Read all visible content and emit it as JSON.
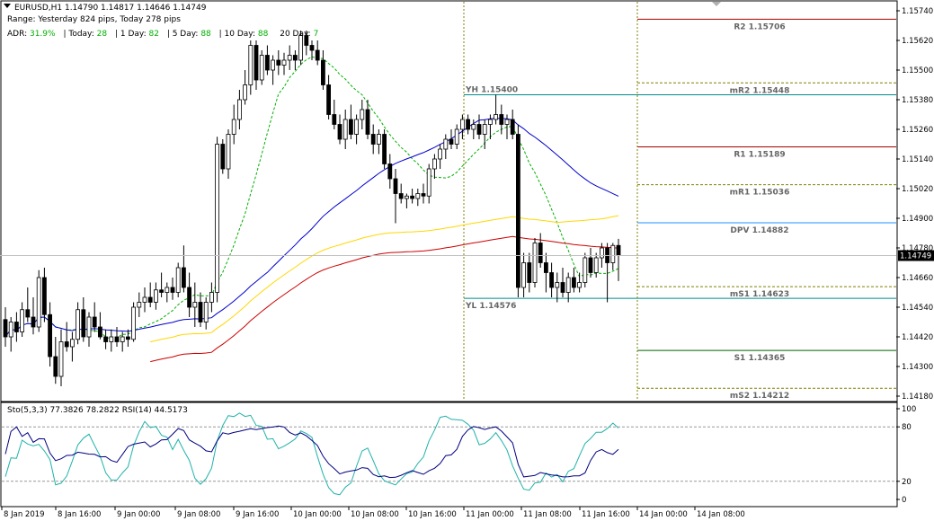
{
  "header": {
    "symbol_line": "EURUSD,H1  1.14790 1.14817 1.14646 1.14749",
    "range_line": "Range: Yesterday 824 pips, Today 278 pips",
    "adr_label": "ADR:",
    "adr_value": "31.9%",
    "today_label": "| Today:",
    "today_value": "28",
    "day1_label": "| 1 Day:",
    "day1_value": "82",
    "day5_label": "| 5 Day:",
    "day5_value": "88",
    "day10_label": "| 10 Day:",
    "day10_value": "88",
    "day20_label": "20 Day:",
    "day20_value": "7"
  },
  "sub_header": "Sto(5,3,3) 77.3826 78.2822  RSI(14) 44.5173",
  "colors": {
    "bull": "#ffffff",
    "bear": "#000000",
    "ma_blue": "#0000cd",
    "ma_yellow": "#ffd700",
    "ma_red": "#cc0000",
    "ma_green_dashed": "#00b000",
    "level_red": "#aa0000",
    "level_green": "#006400",
    "level_blue": "#1e90ff",
    "level_teal": "#008b8b",
    "level_dotted": "#808000",
    "sto_main": "#000080",
    "rsi": "#20b2aa"
  },
  "chart_data": [
    {
      "type": "candlestick",
      "symbol": "EURUSD",
      "timeframe": "H1",
      "ylim": [
        1.1415,
        1.158
      ],
      "y_ticks": [
        "1.15740",
        "1.15620",
        "1.15500",
        "1.15380",
        "1.15260",
        "1.15140",
        "1.15020",
        "1.14900",
        "1.14780",
        "1.14660",
        "1.14540",
        "1.14420",
        "1.14300",
        "1.14180"
      ],
      "x_ticks": [
        "8 Jan 2019",
        "8 Jan 16:00",
        "9 Jan 00:00",
        "9 Jan 08:00",
        "9 Jan 16:00",
        "10 Jan 00:00",
        "10 Jan 08:00",
        "10 Jan 16:00",
        "11 Jan 00:00",
        "11 Jan 08:00",
        "11 Jan 16:00",
        "14 Jan 00:00",
        "14 Jan 08:00"
      ],
      "current_price": "1.14749",
      "current_price_value": 1.14749,
      "levels": [
        {
          "label": "R2 1.15706",
          "value": 1.15706,
          "color": "#aa0000",
          "style": "solid",
          "from_session": "14 Jan"
        },
        {
          "label": "mR2 1.15448",
          "value": 1.15448,
          "color": "#808000",
          "style": "dotted",
          "from_session": "14 Jan"
        },
        {
          "label": "R1 1.15189",
          "value": 1.15189,
          "color": "#aa0000",
          "style": "solid",
          "from_session": "14 Jan"
        },
        {
          "label": "mR1 1.15036",
          "value": 1.15036,
          "color": "#808000",
          "style": "dotted",
          "from_session": "14 Jan"
        },
        {
          "label": "DPV 1.14882",
          "value": 1.14882,
          "color": "#1e90ff",
          "style": "solid",
          "from_session": "14 Jan"
        },
        {
          "label": "mS1 1.14623",
          "value": 1.14623,
          "color": "#808000",
          "style": "dotted",
          "from_session": "14 Jan"
        },
        {
          "label": "S1 1.14365",
          "value": 1.14365,
          "color": "#006400",
          "style": "solid",
          "from_session": "14 Jan"
        },
        {
          "label": "mS2 1.14212",
          "value": 1.14212,
          "color": "#808000",
          "style": "dotted",
          "from_session": "14 Jan"
        },
        {
          "label": "YH 1.15400",
          "value": 1.154,
          "color": "#008b8b",
          "style": "solid",
          "from_session": "11 Jan"
        },
        {
          "label": "YL 1.14576",
          "value": 1.14576,
          "color": "#008b8b",
          "style": "solid",
          "from_session": "11 Jan"
        }
      ],
      "candles": [
        [
          1.1449,
          1.1454,
          1.1438,
          1.1442
        ],
        [
          1.1442,
          1.145,
          1.1436,
          1.1448
        ],
        [
          1.1448,
          1.1452,
          1.144,
          1.1444
        ],
        [
          1.1444,
          1.1456,
          1.1442,
          1.1453
        ],
        [
          1.1453,
          1.1462,
          1.1448,
          1.145
        ],
        [
          1.145,
          1.1458,
          1.1443,
          1.1446
        ],
        [
          1.1446,
          1.1469,
          1.1444,
          1.1466
        ],
        [
          1.1466,
          1.147,
          1.1448,
          1.1451
        ],
        [
          1.1451,
          1.1456,
          1.143,
          1.1434
        ],
        [
          1.1434,
          1.1442,
          1.1423,
          1.1426
        ],
        [
          1.1426,
          1.1445,
          1.1422,
          1.144
        ],
        [
          1.144,
          1.1448,
          1.1436,
          1.1438
        ],
        [
          1.1438,
          1.1444,
          1.1432,
          1.1441
        ],
        [
          1.1441,
          1.1456,
          1.1439,
          1.1453
        ],
        [
          1.1453,
          1.1458,
          1.144,
          1.1442
        ],
        [
          1.1442,
          1.1452,
          1.1438,
          1.145
        ],
        [
          1.145,
          1.1456,
          1.1444,
          1.1446
        ],
        [
          1.1446,
          1.1452,
          1.1441,
          1.1442
        ],
        [
          1.1442,
          1.1445,
          1.1437,
          1.144
        ],
        [
          1.144,
          1.1445,
          1.1436,
          1.1442
        ],
        [
          1.1442,
          1.1446,
          1.1438,
          1.144
        ],
        [
          1.144,
          1.1444,
          1.1436,
          1.1442
        ],
        [
          1.1442,
          1.1445,
          1.1438,
          1.1441
        ],
        [
          1.1441,
          1.1456,
          1.144,
          1.1454
        ],
        [
          1.1454,
          1.146,
          1.145,
          1.1456
        ],
        [
          1.1456,
          1.1462,
          1.1452,
          1.1458
        ],
        [
          1.1458,
          1.1464,
          1.1454,
          1.1456
        ],
        [
          1.1456,
          1.1464,
          1.1453,
          1.1461
        ],
        [
          1.1461,
          1.1468,
          1.1458,
          1.146
        ],
        [
          1.146,
          1.1464,
          1.1456,
          1.1462
        ],
        [
          1.1462,
          1.1466,
          1.1457,
          1.146
        ],
        [
          1.146,
          1.1472,
          1.1458,
          1.147
        ],
        [
          1.147,
          1.1479,
          1.146,
          1.1462
        ],
        [
          1.1462,
          1.1468,
          1.145,
          1.1454
        ],
        [
          1.1454,
          1.1464,
          1.1446,
          1.1456
        ],
        [
          1.1456,
          1.146,
          1.1446,
          1.1448
        ],
        [
          1.1448,
          1.1458,
          1.1445,
          1.1456
        ],
        [
          1.1456,
          1.1464,
          1.1452,
          1.146
        ],
        [
          1.146,
          1.1523,
          1.1456,
          1.152
        ],
        [
          1.152,
          1.1522,
          1.1508,
          1.151
        ],
        [
          1.151,
          1.1526,
          1.1506,
          1.1524
        ],
        [
          1.1524,
          1.1536,
          1.152,
          1.153
        ],
        [
          1.153,
          1.1542,
          1.1526,
          1.1538
        ],
        [
          1.1538,
          1.155,
          1.1536,
          1.1544
        ],
        [
          1.1544,
          1.1562,
          1.154,
          1.156
        ],
        [
          1.156,
          1.1562,
          1.1542,
          1.1546
        ],
        [
          1.1546,
          1.1558,
          1.1544,
          1.1556
        ],
        [
          1.1556,
          1.156,
          1.1548,
          1.155
        ],
        [
          1.155,
          1.1556,
          1.1544,
          1.1554
        ],
        [
          1.1554,
          1.1558,
          1.1548,
          1.1552
        ],
        [
          1.1552,
          1.1557,
          1.1548,
          1.1554
        ],
        [
          1.1554,
          1.156,
          1.155,
          1.1556
        ],
        [
          1.1556,
          1.1558,
          1.155,
          1.1554
        ],
        [
          1.1554,
          1.1566,
          1.1552,
          1.1564
        ],
        [
          1.1564,
          1.1566,
          1.1556,
          1.156
        ],
        [
          1.156,
          1.1562,
          1.1554,
          1.1558
        ],
        [
          1.1558,
          1.1562,
          1.1552,
          1.1554
        ],
        [
          1.1554,
          1.1558,
          1.1542,
          1.1544
        ],
        [
          1.1544,
          1.1548,
          1.153,
          1.1532
        ],
        [
          1.1532,
          1.1538,
          1.1526,
          1.1528
        ],
        [
          1.1528,
          1.1532,
          1.152,
          1.1522
        ],
        [
          1.1522,
          1.1534,
          1.1518,
          1.153
        ],
        [
          1.153,
          1.1536,
          1.1522,
          1.1524
        ],
        [
          1.1524,
          1.1532,
          1.152,
          1.153
        ],
        [
          1.153,
          1.1538,
          1.1526,
          1.1534
        ],
        [
          1.1534,
          1.1538,
          1.1522,
          1.1524
        ],
        [
          1.1524,
          1.1528,
          1.1516,
          1.152
        ],
        [
          1.152,
          1.1526,
          1.1516,
          1.1524
        ],
        [
          1.1524,
          1.1526,
          1.151,
          1.1512
        ],
        [
          1.1512,
          1.1516,
          1.1502,
          1.1506
        ],
        [
          1.1506,
          1.151,
          1.1488,
          1.15
        ],
        [
          1.15,
          1.1504,
          1.1496,
          1.1498
        ],
        [
          1.1498,
          1.15,
          1.1494,
          1.1499
        ],
        [
          1.1499,
          1.1502,
          1.1496,
          1.1498
        ],
        [
          1.1498,
          1.1502,
          1.1495,
          1.15
        ],
        [
          1.15,
          1.1504,
          1.1496,
          1.1499
        ],
        [
          1.1499,
          1.1512,
          1.1496,
          1.151
        ],
        [
          1.151,
          1.1516,
          1.1506,
          1.1514
        ],
        [
          1.1514,
          1.152,
          1.151,
          1.1518
        ],
        [
          1.1518,
          1.1524,
          1.1514,
          1.1522
        ],
        [
          1.1522,
          1.1526,
          1.1518,
          1.152
        ],
        [
          1.152,
          1.1528,
          1.1518,
          1.1526
        ],
        [
          1.1526,
          1.1532,
          1.1522,
          1.153
        ],
        [
          1.153,
          1.1532,
          1.1524,
          1.1526
        ],
        [
          1.1526,
          1.153,
          1.1522,
          1.1528
        ],
        [
          1.1528,
          1.1532,
          1.1522,
          1.1524
        ],
        [
          1.1524,
          1.153,
          1.1518,
          1.1528
        ],
        [
          1.1528,
          1.1532,
          1.1522,
          1.153
        ],
        [
          1.153,
          1.154,
          1.1528,
          1.1532
        ],
        [
          1.1532,
          1.1536,
          1.1524,
          1.1528
        ],
        [
          1.1528,
          1.1532,
          1.1522,
          1.153
        ],
        [
          1.153,
          1.1534,
          1.1522,
          1.1524
        ],
        [
          1.1524,
          1.1528,
          1.1458,
          1.1462
        ],
        [
          1.1462,
          1.1476,
          1.1458,
          1.1472
        ],
        [
          1.1472,
          1.1476,
          1.146,
          1.1464
        ],
        [
          1.1464,
          1.1482,
          1.1462,
          1.148
        ],
        [
          1.148,
          1.1484,
          1.147,
          1.1472
        ],
        [
          1.1472,
          1.1476,
          1.146,
          1.1468
        ],
        [
          1.1468,
          1.1472,
          1.1458,
          1.1462
        ],
        [
          1.1462,
          1.1468,
          1.1456,
          1.1464
        ],
        [
          1.1464,
          1.147,
          1.1458,
          1.146
        ],
        [
          1.146,
          1.1468,
          1.1456,
          1.1466
        ],
        [
          1.1466,
          1.147,
          1.146,
          1.1462
        ],
        [
          1.1462,
          1.1468,
          1.146,
          1.1464
        ],
        [
          1.1464,
          1.1476,
          1.1462,
          1.1474
        ],
        [
          1.1474,
          1.1478,
          1.1466,
          1.1468
        ],
        [
          1.1468,
          1.1476,
          1.1466,
          1.1474
        ],
        [
          1.1474,
          1.148,
          1.147,
          1.1478
        ],
        [
          1.1478,
          1.148,
          1.1456,
          1.1472
        ],
        [
          1.1472,
          1.148,
          1.1469,
          1.1479
        ],
        [
          1.1479,
          1.14817,
          1.14646,
          1.14749
        ]
      ]
    },
    {
      "type": "line",
      "title": "Sto(5,3,3) 77.3826 78.2822  RSI(14) 44.5173",
      "ylim": [
        0,
        100
      ],
      "y_ticks": [
        "100",
        "80",
        "20",
        "0"
      ],
      "levels": [
        80,
        20
      ],
      "series": [
        {
          "name": "Sto(5,3,3)",
          "color": "#000080"
        },
        {
          "name": "RSI(14)",
          "color": "#20b2aa"
        }
      ]
    }
  ]
}
